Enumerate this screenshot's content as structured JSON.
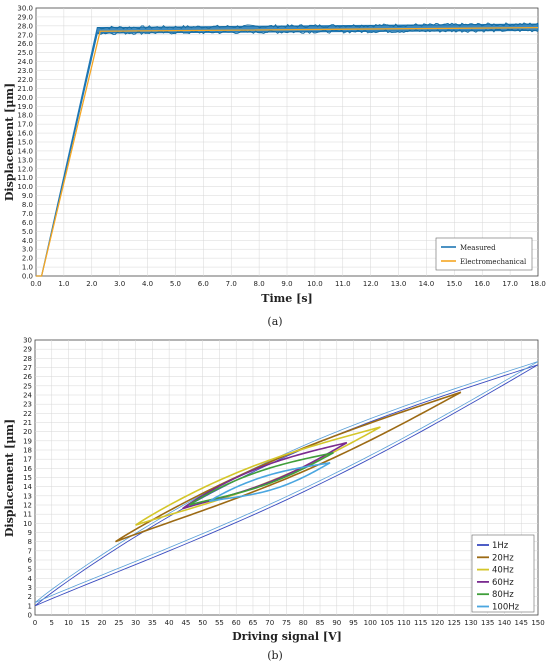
{
  "chart_data": [
    {
      "type": "line",
      "title": "",
      "caption": "(a)",
      "xlabel": "Time [s]",
      "ylabel": "Displacement [μm]",
      "xlim": [
        0,
        18
      ],
      "ylim": [
        0,
        30
      ],
      "xticks": [
        "0.0",
        "1.0",
        "2.0",
        "3.0",
        "4.0",
        "5.0",
        "6.0",
        "7.0",
        "8.0",
        "9.0",
        "10.0",
        "11.0",
        "12.0",
        "13.0",
        "14.0",
        "15.0",
        "16.0",
        "17.0",
        "18.0"
      ],
      "yticks": [
        "0.0",
        "1.0",
        "2.0",
        "3.0",
        "4.0",
        "5.0",
        "6.0",
        "7.0",
        "8.0",
        "9.0",
        "10.0",
        "11.0",
        "12.0",
        "13.0",
        "14.0",
        "15.0",
        "16.0",
        "17.0",
        "18.0",
        "19.0",
        "20.0",
        "21.0",
        "22.0",
        "23.0",
        "24.0",
        "25.0",
        "26.0",
        "27.0",
        "28.0",
        "29.0",
        "30.0"
      ],
      "grid": true,
      "legend_position": "bottom-right",
      "series": [
        {
          "name": "Measured",
          "color": "#1f77b4",
          "band": true,
          "x": [
            0.0,
            0.2,
            2.2,
            18.0
          ],
          "y_low": [
            0.0,
            0.0,
            27.2,
            27.5
          ],
          "y_high": [
            0.0,
            0.0,
            27.8,
            28.2
          ]
        },
        {
          "name": "Electromechanical",
          "color": "#f5a623",
          "x": [
            0.0,
            0.2,
            2.3,
            18.0
          ],
          "y": [
            0.0,
            0.0,
            27.4,
            27.8
          ]
        }
      ]
    },
    {
      "type": "line",
      "title": "",
      "caption": "(b)",
      "xlabel": "Driving signal [V]",
      "ylabel": "Displacement [μm]",
      "xlim": [
        0,
        150
      ],
      "ylim": [
        0,
        30
      ],
      "xticks": [
        "0",
        "5",
        "10",
        "15",
        "20",
        "25",
        "30",
        "35",
        "40",
        "45",
        "50",
        "55",
        "60",
        "65",
        "70",
        "75",
        "80",
        "85",
        "90",
        "95",
        "100",
        "105",
        "110",
        "115",
        "120",
        "125",
        "130",
        "135",
        "140",
        "145",
        "150"
      ],
      "yticks": [
        "0",
        "1",
        "2",
        "3",
        "4",
        "5",
        "6",
        "7",
        "8",
        "9",
        "10",
        "11",
        "12",
        "13",
        "14",
        "15",
        "16",
        "17",
        "18",
        "19",
        "20",
        "21",
        "22",
        "23",
        "24",
        "25",
        "26",
        "27",
        "28",
        "29",
        "30"
      ],
      "grid": true,
      "legend_position": "bottom-right",
      "series": [
        {
          "name": "1Hz",
          "color": "#3b4cc0",
          "loop": [
            [
              0,
              1.0
            ],
            [
              150,
              27.3
            ]
          ],
          "upper_bow": 3.2,
          "lower_bow": 1.6,
          "double": true
        },
        {
          "name": "20Hz",
          "color": "#9c6a14",
          "loop": [
            [
              24,
              8.0
            ],
            [
              127,
              24.3
            ]
          ],
          "upper_bow": 1.4,
          "lower_bow": 1.2
        },
        {
          "name": "40Hz",
          "color": "#d4c62a",
          "loop": [
            [
              30,
              9.8
            ],
            [
              103,
              20.5
            ]
          ],
          "upper_bow": 1.3,
          "lower_bow": 1.1
        },
        {
          "name": "60Hz",
          "color": "#7a2b8f",
          "loop": [
            [
              44,
              11.6
            ],
            [
              93,
              18.8
            ]
          ],
          "upper_bow": 1.1,
          "lower_bow": 0.9
        },
        {
          "name": "80Hz",
          "color": "#3f9e3a",
          "loop": [
            [
              46,
              12.0
            ],
            [
              89,
              17.7
            ]
          ],
          "upper_bow": 0.9,
          "lower_bow": 0.8
        },
        {
          "name": "100Hz",
          "color": "#4aa6e0",
          "loop": [
            [
              52,
              12.4
            ],
            [
              88,
              16.6
            ]
          ],
          "upper_bow": 0.8,
          "lower_bow": 0.9
        }
      ]
    }
  ]
}
